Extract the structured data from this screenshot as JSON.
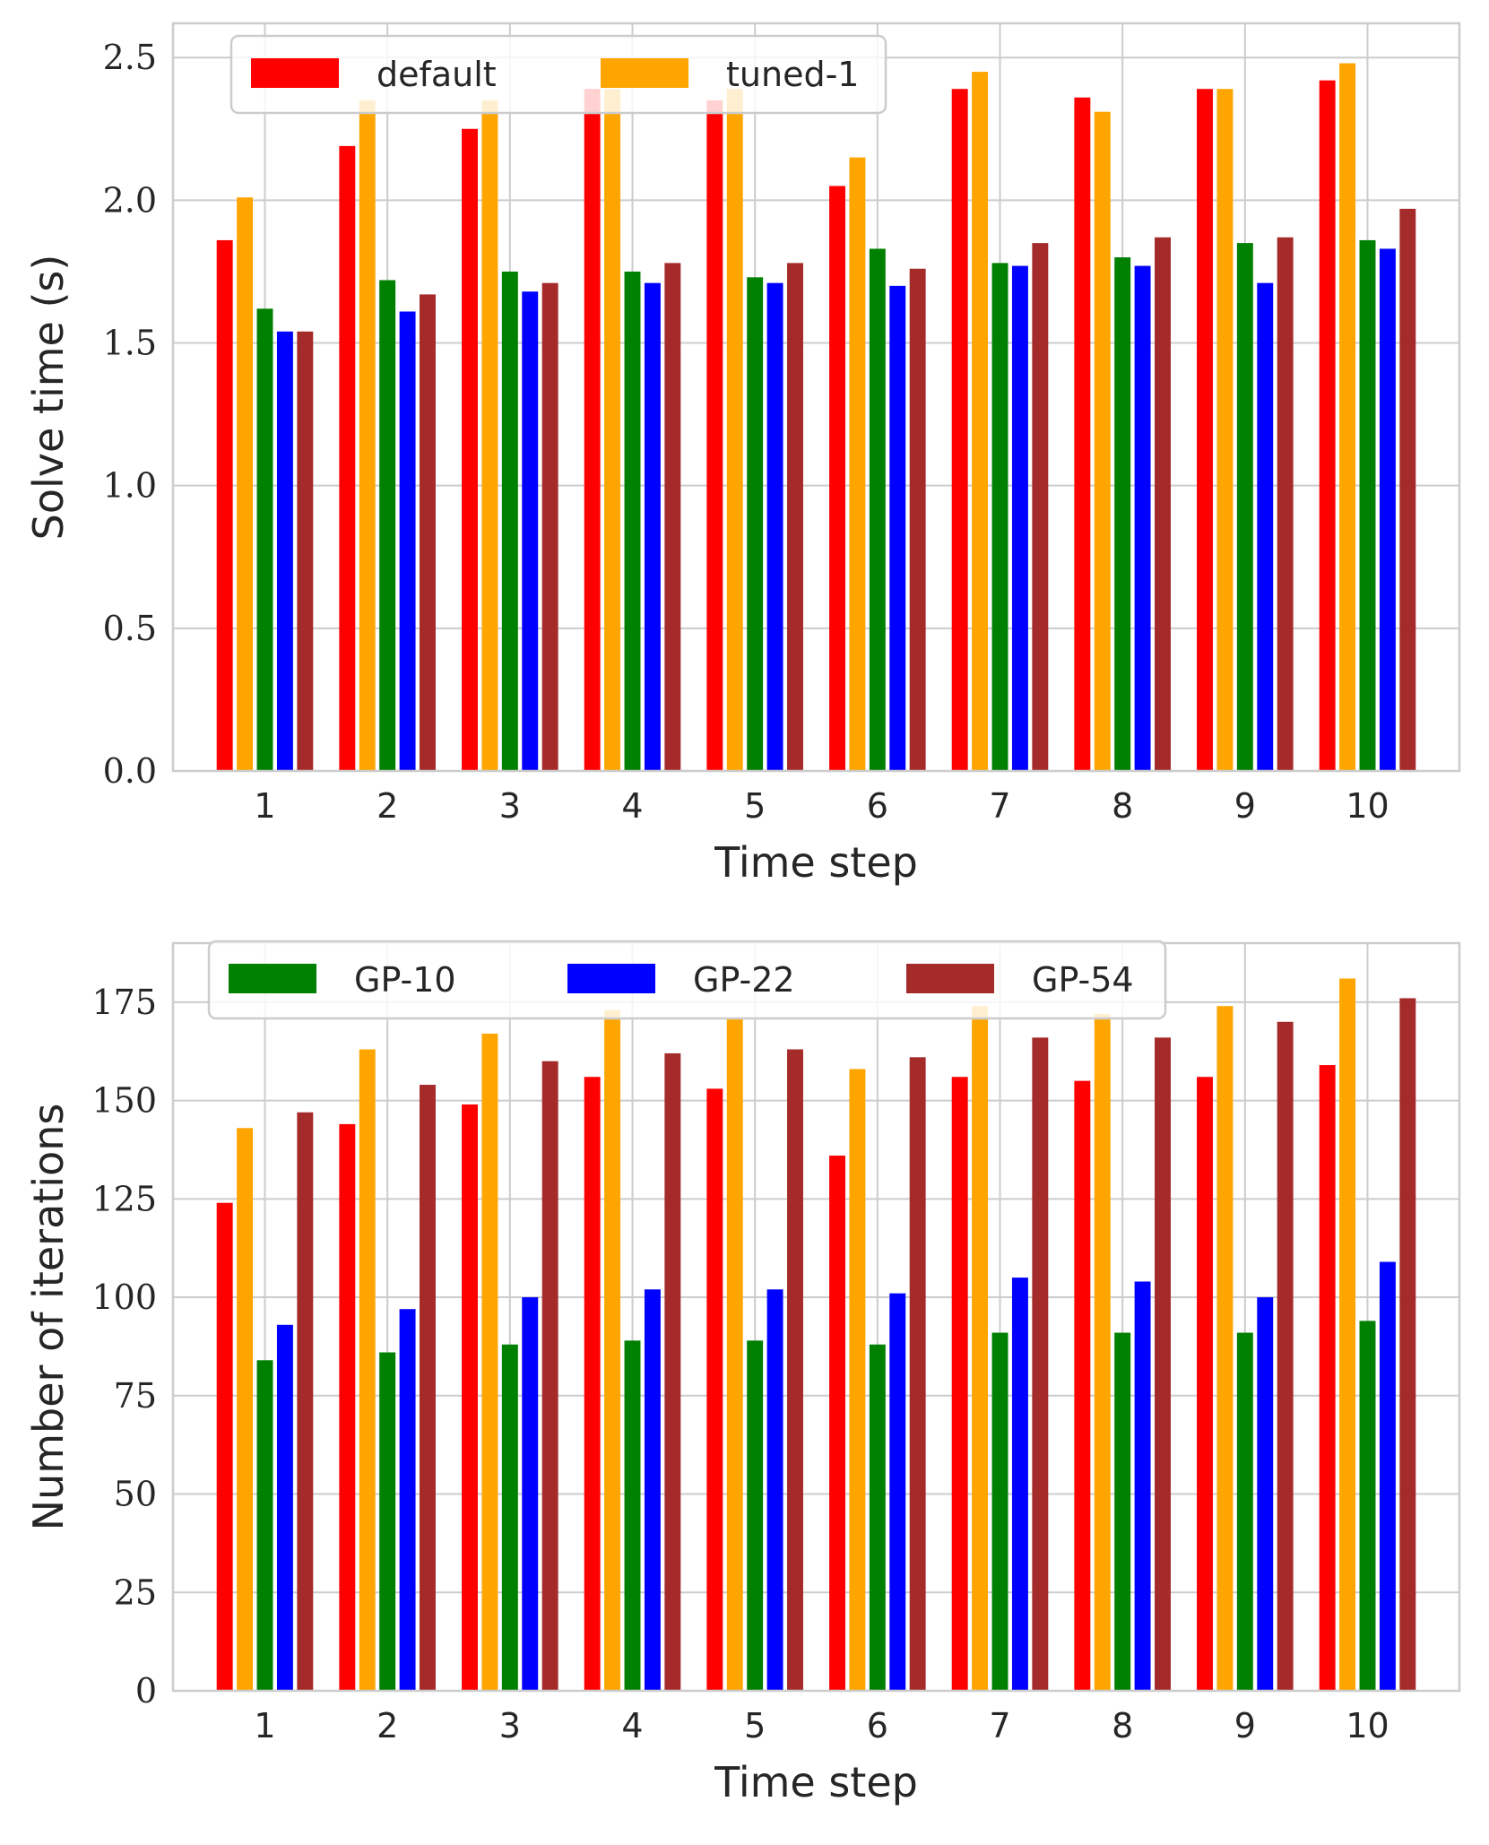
{
  "chart_data": [
    {
      "type": "bar",
      "xlabel": "Time step",
      "ylabel": "Solve time (s)",
      "ylim": [
        0,
        2.62
      ],
      "yticks": [
        "0.0",
        "0.5",
        "1.0",
        "1.5",
        "2.0",
        "2.5"
      ],
      "ytick_values": [
        0,
        0.5,
        1.0,
        1.5,
        2.0,
        2.5
      ],
      "categories": [
        "1",
        "2",
        "3",
        "4",
        "5",
        "6",
        "7",
        "8",
        "9",
        "10"
      ],
      "grid": true,
      "legend": {
        "placement": "top-left",
        "entries": [
          0,
          1
        ]
      },
      "series": [
        {
          "name": "default",
          "color": "#ff0000",
          "values": [
            1.86,
            2.19,
            2.25,
            2.39,
            2.35,
            2.05,
            2.39,
            2.36,
            2.39,
            2.42
          ]
        },
        {
          "name": "tuned-1",
          "color": "#ffa500",
          "values": [
            2.01,
            2.35,
            2.35,
            2.39,
            2.39,
            2.15,
            2.45,
            2.31,
            2.39,
            2.48
          ]
        },
        {
          "name": "GP-10",
          "color": "#008000",
          "values": [
            1.62,
            1.72,
            1.75,
            1.75,
            1.73,
            1.83,
            1.78,
            1.8,
            1.85,
            1.86
          ]
        },
        {
          "name": "GP-22",
          "color": "#0000ff",
          "values": [
            1.54,
            1.61,
            1.68,
            1.71,
            1.71,
            1.7,
            1.77,
            1.77,
            1.71,
            1.83
          ]
        },
        {
          "name": "GP-54",
          "color": "#a52a2a",
          "values": [
            1.54,
            1.67,
            1.71,
            1.78,
            1.78,
            1.76,
            1.85,
            1.87,
            1.87,
            1.97
          ]
        }
      ]
    },
    {
      "type": "bar",
      "xlabel": "Time step",
      "ylabel": "Number of iterations",
      "ylim": [
        0,
        190
      ],
      "yticks": [
        "0",
        "25",
        "50",
        "75",
        "100",
        "125",
        "150",
        "175"
      ],
      "ytick_values": [
        0,
        25,
        50,
        75,
        100,
        125,
        150,
        175
      ],
      "categories": [
        "1",
        "2",
        "3",
        "4",
        "5",
        "6",
        "7",
        "8",
        "9",
        "10"
      ],
      "grid": true,
      "legend": {
        "placement": "top-left",
        "entries": [
          2,
          3,
          4
        ]
      },
      "series": [
        {
          "name": "default",
          "color": "#ff0000",
          "values": [
            124,
            144,
            149,
            156,
            153,
            136,
            156,
            155,
            156,
            159
          ]
        },
        {
          "name": "tuned-1",
          "color": "#ffa500",
          "values": [
            143,
            163,
            167,
            173,
            171,
            158,
            174,
            172,
            174,
            181
          ]
        },
        {
          "name": "GP-10",
          "color": "#008000",
          "values": [
            84,
            86,
            88,
            89,
            89,
            88,
            91,
            91,
            91,
            94
          ]
        },
        {
          "name": "GP-22",
          "color": "#0000ff",
          "values": [
            93,
            97,
            100,
            102,
            102,
            101,
            105,
            104,
            100,
            109
          ]
        },
        {
          "name": "GP-54",
          "color": "#a52a2a",
          "values": [
            147,
            154,
            160,
            162,
            163,
            161,
            166,
            166,
            170,
            176
          ]
        }
      ]
    }
  ]
}
